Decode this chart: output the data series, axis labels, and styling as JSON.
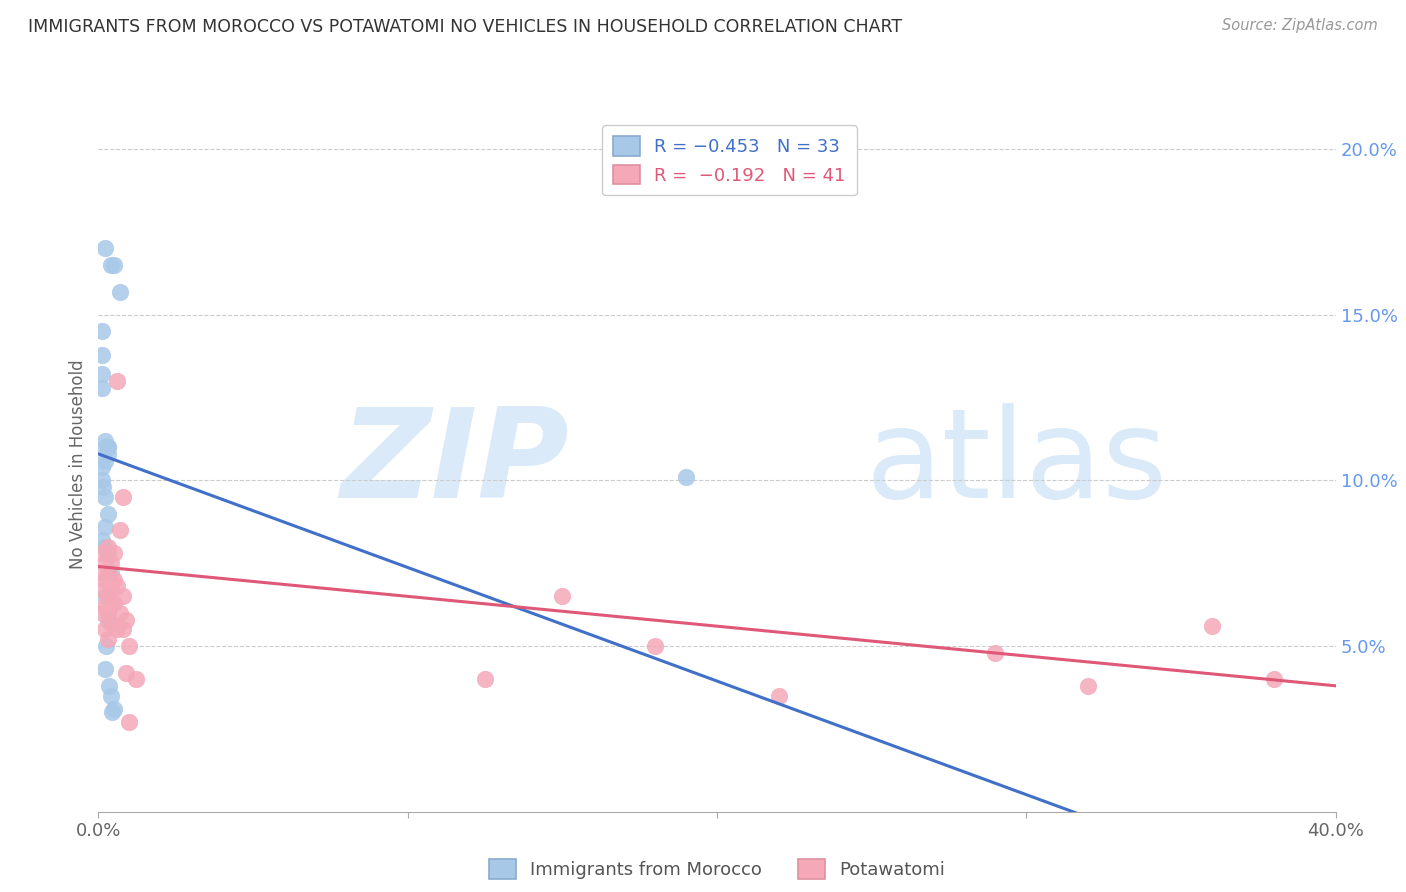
{
  "title": "IMMIGRANTS FROM MOROCCO VS POTAWATOMI NO VEHICLES IN HOUSEHOLD CORRELATION CHART",
  "source": "Source: ZipAtlas.com",
  "ylabel": "No Vehicles in Household",
  "legend_label_blue": "Immigrants from Morocco",
  "legend_label_pink": "Potawatomi",
  "blue_color": "#a8c8e8",
  "pink_color": "#f4a8b8",
  "blue_fill_color": "#a8c8e8",
  "pink_fill_color": "#f4a8b8",
  "blue_line_color": "#4070c8",
  "pink_line_color": "#e05878",
  "blue_points_x": [
    0.002,
    0.004,
    0.007,
    0.001,
    0.001,
    0.001,
    0.001,
    0.002,
    0.003,
    0.005,
    0.002,
    0.003,
    0.002,
    0.001,
    0.002,
    0.003,
    0.004,
    0.003,
    0.002,
    0.003,
    0.002,
    0.001,
    0.001,
    0.0015,
    0.002,
    0.003,
    0.0025,
    0.002,
    0.0035,
    0.004,
    0.005,
    0.0045,
    0.19
  ],
  "blue_points_y": [
    0.17,
    0.165,
    0.157,
    0.145,
    0.138,
    0.132,
    0.128,
    0.112,
    0.11,
    0.165,
    0.095,
    0.09,
    0.086,
    0.082,
    0.08,
    0.078,
    0.072,
    0.11,
    0.11,
    0.108,
    0.106,
    0.104,
    0.1,
    0.098,
    0.065,
    0.058,
    0.05,
    0.043,
    0.038,
    0.035,
    0.031,
    0.03,
    0.101
  ],
  "pink_points_x": [
    0.001,
    0.001,
    0.001,
    0.001,
    0.002,
    0.002,
    0.002,
    0.002,
    0.003,
    0.003,
    0.003,
    0.003,
    0.003,
    0.004,
    0.004,
    0.004,
    0.004,
    0.005,
    0.005,
    0.005,
    0.006,
    0.006,
    0.006,
    0.007,
    0.007,
    0.008,
    0.008,
    0.008,
    0.009,
    0.009,
    0.01,
    0.012,
    0.15,
    0.18,
    0.22,
    0.29,
    0.32,
    0.36,
    0.38,
    0.125,
    0.01
  ],
  "pink_points_y": [
    0.078,
    0.072,
    0.067,
    0.06,
    0.075,
    0.07,
    0.062,
    0.055,
    0.08,
    0.072,
    0.065,
    0.06,
    0.052,
    0.075,
    0.068,
    0.063,
    0.057,
    0.078,
    0.07,
    0.063,
    0.13,
    0.068,
    0.055,
    0.085,
    0.06,
    0.095,
    0.065,
    0.055,
    0.058,
    0.042,
    0.05,
    0.04,
    0.065,
    0.05,
    0.035,
    0.048,
    0.038,
    0.056,
    0.04,
    0.04,
    0.027
  ],
  "xlim": [
    0.0,
    0.4
  ],
  "ylim": [
    0.0,
    0.21
  ],
  "x_ticks": [
    0.0,
    0.1,
    0.2,
    0.3,
    0.4
  ],
  "x_tick_labels": [
    "0.0%",
    "",
    "",
    "",
    "40.0%"
  ],
  "y_ticks": [
    0.05,
    0.1,
    0.15,
    0.2
  ],
  "y_tick_labels": [
    "5.0%",
    "10.0%",
    "15.0%",
    "20.0%"
  ],
  "blue_line_x": [
    0.0,
    0.35
  ],
  "blue_line_y": [
    0.108,
    -0.012
  ],
  "pink_line_x": [
    0.0,
    0.4
  ],
  "pink_line_y": [
    0.074,
    0.038
  ],
  "background_color": "#ffffff",
  "watermark_zip": "ZIP",
  "watermark_atlas": "atlas",
  "watermark_color": "#daeaf8"
}
